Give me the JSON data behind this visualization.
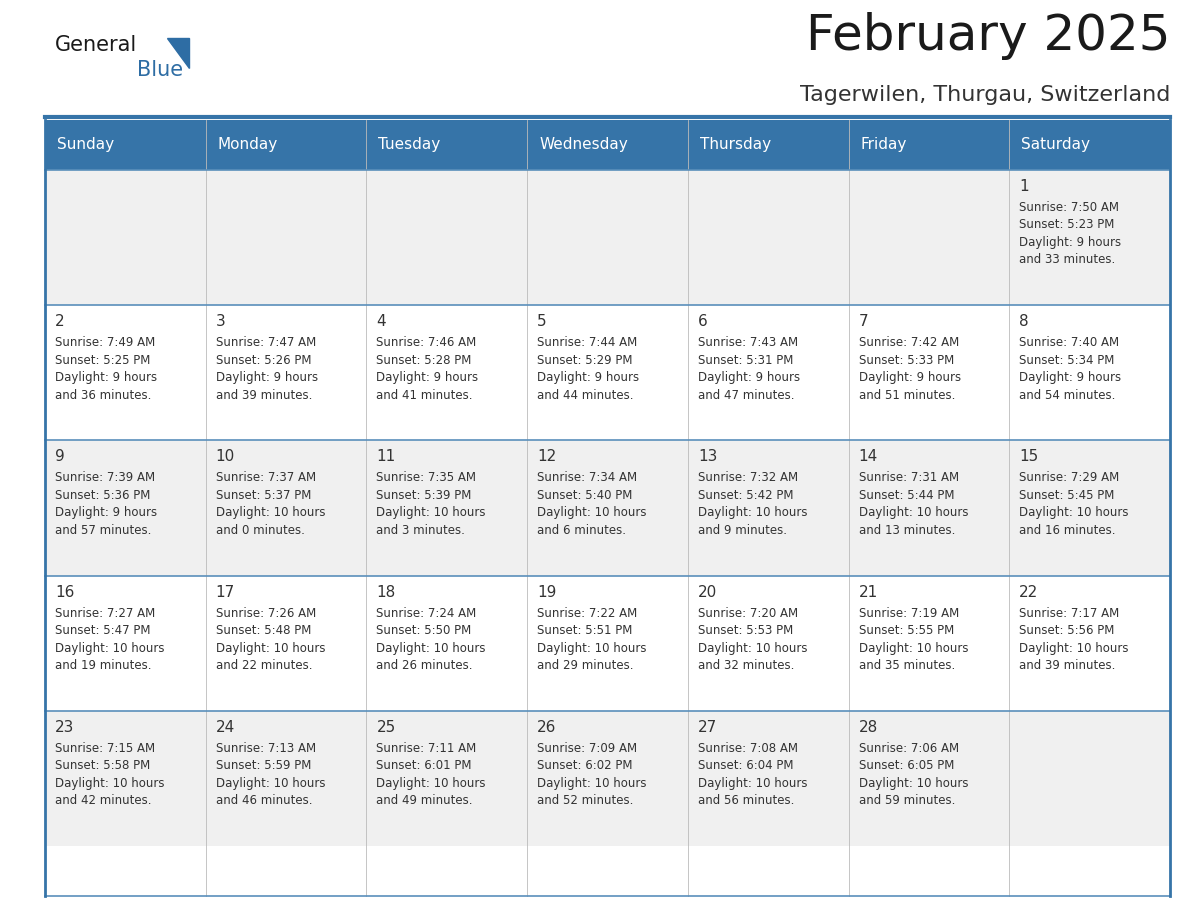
{
  "title": "February 2025",
  "subtitle": "Tagerwilen, Thurgau, Switzerland",
  "header_bg": "#3674A8",
  "header_text_color": "#FFFFFF",
  "cell_bg_odd": "#F0F0F0",
  "cell_bg_even": "#FFFFFF",
  "day_number_color": "#333333",
  "cell_text_color": "#333333",
  "border_color": "#3674A8",
  "row_border_color": "#5A8FBB",
  "days_of_week": [
    "Sunday",
    "Monday",
    "Tuesday",
    "Wednesday",
    "Thursday",
    "Friday",
    "Saturday"
  ],
  "weeks": [
    [
      {
        "day": "",
        "info": ""
      },
      {
        "day": "",
        "info": ""
      },
      {
        "day": "",
        "info": ""
      },
      {
        "day": "",
        "info": ""
      },
      {
        "day": "",
        "info": ""
      },
      {
        "day": "",
        "info": ""
      },
      {
        "day": "1",
        "info": "Sunrise: 7:50 AM\nSunset: 5:23 PM\nDaylight: 9 hours\nand 33 minutes."
      }
    ],
    [
      {
        "day": "2",
        "info": "Sunrise: 7:49 AM\nSunset: 5:25 PM\nDaylight: 9 hours\nand 36 minutes."
      },
      {
        "day": "3",
        "info": "Sunrise: 7:47 AM\nSunset: 5:26 PM\nDaylight: 9 hours\nand 39 minutes."
      },
      {
        "day": "4",
        "info": "Sunrise: 7:46 AM\nSunset: 5:28 PM\nDaylight: 9 hours\nand 41 minutes."
      },
      {
        "day": "5",
        "info": "Sunrise: 7:44 AM\nSunset: 5:29 PM\nDaylight: 9 hours\nand 44 minutes."
      },
      {
        "day": "6",
        "info": "Sunrise: 7:43 AM\nSunset: 5:31 PM\nDaylight: 9 hours\nand 47 minutes."
      },
      {
        "day": "7",
        "info": "Sunrise: 7:42 AM\nSunset: 5:33 PM\nDaylight: 9 hours\nand 51 minutes."
      },
      {
        "day": "8",
        "info": "Sunrise: 7:40 AM\nSunset: 5:34 PM\nDaylight: 9 hours\nand 54 minutes."
      }
    ],
    [
      {
        "day": "9",
        "info": "Sunrise: 7:39 AM\nSunset: 5:36 PM\nDaylight: 9 hours\nand 57 minutes."
      },
      {
        "day": "10",
        "info": "Sunrise: 7:37 AM\nSunset: 5:37 PM\nDaylight: 10 hours\nand 0 minutes."
      },
      {
        "day": "11",
        "info": "Sunrise: 7:35 AM\nSunset: 5:39 PM\nDaylight: 10 hours\nand 3 minutes."
      },
      {
        "day": "12",
        "info": "Sunrise: 7:34 AM\nSunset: 5:40 PM\nDaylight: 10 hours\nand 6 minutes."
      },
      {
        "day": "13",
        "info": "Sunrise: 7:32 AM\nSunset: 5:42 PM\nDaylight: 10 hours\nand 9 minutes."
      },
      {
        "day": "14",
        "info": "Sunrise: 7:31 AM\nSunset: 5:44 PM\nDaylight: 10 hours\nand 13 minutes."
      },
      {
        "day": "15",
        "info": "Sunrise: 7:29 AM\nSunset: 5:45 PM\nDaylight: 10 hours\nand 16 minutes."
      }
    ],
    [
      {
        "day": "16",
        "info": "Sunrise: 7:27 AM\nSunset: 5:47 PM\nDaylight: 10 hours\nand 19 minutes."
      },
      {
        "day": "17",
        "info": "Sunrise: 7:26 AM\nSunset: 5:48 PM\nDaylight: 10 hours\nand 22 minutes."
      },
      {
        "day": "18",
        "info": "Sunrise: 7:24 AM\nSunset: 5:50 PM\nDaylight: 10 hours\nand 26 minutes."
      },
      {
        "day": "19",
        "info": "Sunrise: 7:22 AM\nSunset: 5:51 PM\nDaylight: 10 hours\nand 29 minutes."
      },
      {
        "day": "20",
        "info": "Sunrise: 7:20 AM\nSunset: 5:53 PM\nDaylight: 10 hours\nand 32 minutes."
      },
      {
        "day": "21",
        "info": "Sunrise: 7:19 AM\nSunset: 5:55 PM\nDaylight: 10 hours\nand 35 minutes."
      },
      {
        "day": "22",
        "info": "Sunrise: 7:17 AM\nSunset: 5:56 PM\nDaylight: 10 hours\nand 39 minutes."
      }
    ],
    [
      {
        "day": "23",
        "info": "Sunrise: 7:15 AM\nSunset: 5:58 PM\nDaylight: 10 hours\nand 42 minutes."
      },
      {
        "day": "24",
        "info": "Sunrise: 7:13 AM\nSunset: 5:59 PM\nDaylight: 10 hours\nand 46 minutes."
      },
      {
        "day": "25",
        "info": "Sunrise: 7:11 AM\nSunset: 6:01 PM\nDaylight: 10 hours\nand 49 minutes."
      },
      {
        "day": "26",
        "info": "Sunrise: 7:09 AM\nSunset: 6:02 PM\nDaylight: 10 hours\nand 52 minutes."
      },
      {
        "day": "27",
        "info": "Sunrise: 7:08 AM\nSunset: 6:04 PM\nDaylight: 10 hours\nand 56 minutes."
      },
      {
        "day": "28",
        "info": "Sunrise: 7:06 AM\nSunset: 6:05 PM\nDaylight: 10 hours\nand 59 minutes."
      },
      {
        "day": "",
        "info": ""
      }
    ]
  ],
  "logo_text1": "General",
  "logo_text2": "Blue",
  "logo_color1": "#1a1a1a",
  "logo_color2": "#2E6DA4",
  "title_fontsize": 36,
  "subtitle_fontsize": 16,
  "header_fontsize": 11,
  "day_num_fontsize": 11,
  "info_fontsize": 8.5
}
